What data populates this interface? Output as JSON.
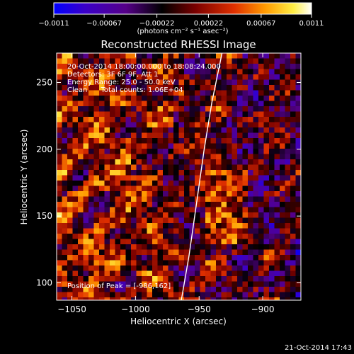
{
  "chart_data": {
    "type": "heatmap",
    "title": "Reconstructed RHESSI Image",
    "xlabel": "Heliocentric X (arcsec)",
    "ylabel": "Heliocentric Y (arcsec)",
    "xlim": [
      -1062,
      -870
    ],
    "ylim": [
      87,
      272
    ],
    "x_ticks": [
      -1050,
      -1000,
      -950,
      -900
    ],
    "x_tick_labels": [
      "−1050",
      "−1000",
      "−950",
      "−900"
    ],
    "y_ticks": [
      100,
      150,
      200,
      250
    ],
    "y_tick_labels": [
      "100",
      "150",
      "200",
      "250"
    ],
    "colorbar": {
      "range": [
        -0.0011,
        0.0011
      ],
      "ticks": [
        -0.0011,
        -0.00067,
        -0.00022,
        0.00022,
        0.00067,
        0.0011
      ],
      "tick_labels": [
        "−0.0011",
        "−0.00067",
        "−0.00022",
        "0.00022",
        "0.00067",
        "0.0011"
      ],
      "unit_label": "(photons cm⁻² s⁻¹ asec⁻²)",
      "colors": [
        "#0000ff",
        "#3a00c8",
        "#550088",
        "#000000",
        "#7a0000",
        "#e03000",
        "#ff9a00",
        "#ffee44",
        "#ffffff"
      ]
    },
    "annotations": [
      "20-Oct-2014 18:00:00.000 to 18:08:24.000",
      "Detectors: 3F 6F 9F, Att 1",
      "Energy Range: 25.0 - 50.0 keV",
      "Clean      Total counts: 1.06E+04"
    ],
    "peak_label": "Position of Peak = [-986,162]",
    "limb_curve": [
      [
        -964,
        87
      ],
      [
        -958,
        120
      ],
      [
        -952,
        160
      ],
      [
        -946,
        200
      ],
      [
        -940,
        235
      ],
      [
        -932,
        272
      ]
    ],
    "limb_color": "#ffffff"
  },
  "timestamp": "21-Oct-2014 17:43"
}
